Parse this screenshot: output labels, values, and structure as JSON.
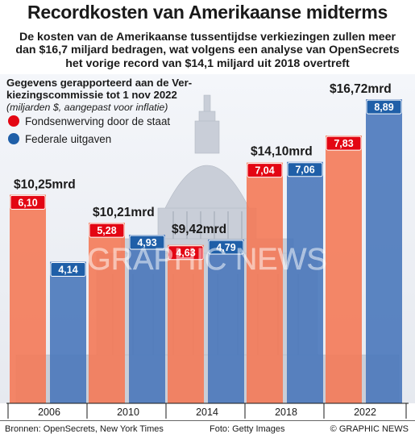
{
  "header": {
    "title": "Recordkosten van Amerikaanse midterms",
    "subtitle_lines": [
      "De kosten van de Amerikaanse tussentijdse verkiezingen zullen meer",
      "dan $16,7 miljard bedragen, wat volgens een analyse van OpenSecrets",
      "het vorige record van $14,1 miljard uit 2018 overtreft"
    ]
  },
  "footer": {
    "sources": "Bronnen: OpenSecrets, New York Times",
    "photo": "Foto: Getty Images",
    "copyright": "© GRAPHIC NEWS"
  },
  "watermark": "GRAPHIC NEWS",
  "colors": {
    "state_fill": "#f47a58",
    "state_label": "#e30613",
    "federal_fill": "#4a78bb",
    "federal_label": "#1f5fa8"
  },
  "chart_data": {
    "type": "bar",
    "note_lines": [
      "Gegevens gerapporteerd aan de Ver-",
      "kiezingscommissie tot 1 nov 2022"
    ],
    "ylabel": "(miljarden $, aangepast voor inflatie)",
    "categories": [
      "2006",
      "2010",
      "2014",
      "2018",
      "2022"
    ],
    "series": [
      {
        "name": "Fondsenwerving door de staat",
        "values": [
          6.1,
          5.28,
          4.63,
          7.04,
          7.83
        ],
        "labels": [
          "6,10",
          "5,28",
          "4,63",
          "7,04",
          "7,83"
        ]
      },
      {
        "name": "Federale uitgaven",
        "values": [
          4.14,
          4.93,
          4.79,
          7.06,
          8.89
        ],
        "labels": [
          "4,14",
          "4,93",
          "4,79",
          "7,06",
          "8,89"
        ]
      }
    ],
    "totals": [
      "$10,25mrd",
      "$10,21mrd",
      "$9,42mrd",
      "$14,10mrd",
      "$16,72mrd"
    ],
    "ylim": [
      0,
      9.2
    ],
    "grid": false,
    "legend": "top-left"
  }
}
